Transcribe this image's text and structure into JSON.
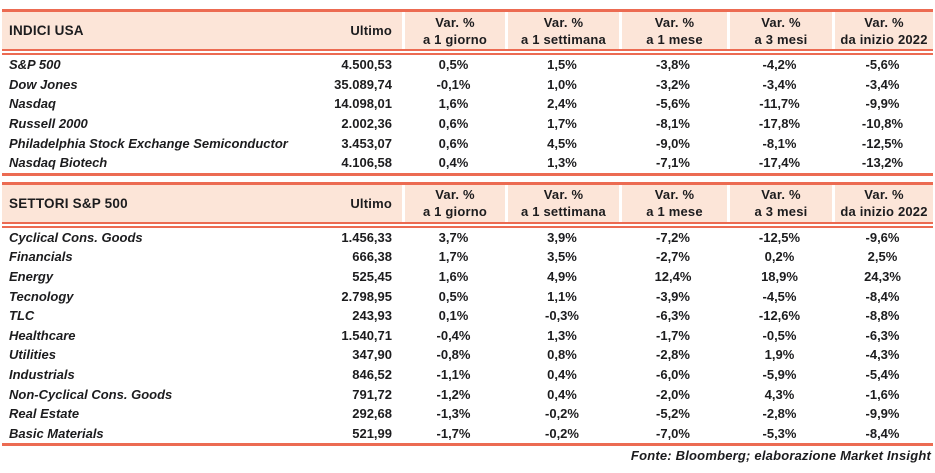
{
  "colors": {
    "accent": "#ec6b52",
    "header_bg": "#fce5d8",
    "text": "#1c1c1e"
  },
  "var_columns": [
    [
      "Var. %",
      "a 1 giorno"
    ],
    [
      "Var. %",
      "a 1 settimana"
    ],
    [
      "Var. %",
      "a 1 mese"
    ],
    [
      "Var. %",
      "a 3 mesi"
    ],
    [
      "Var. %",
      "da inizio 2022"
    ]
  ],
  "tables": [
    {
      "title": "INDICI USA",
      "ultimo_label": "Ultimo",
      "rows": [
        [
          "S&P 500",
          "4.500,53",
          "0,5%",
          "1,5%",
          "-3,8%",
          "-4,2%",
          "-5,6%"
        ],
        [
          "Dow Jones",
          "35.089,74",
          "-0,1%",
          "1,0%",
          "-3,2%",
          "-3,4%",
          "-3,4%"
        ],
        [
          "Nasdaq",
          "14.098,01",
          "1,6%",
          "2,4%",
          "-5,6%",
          "-11,7%",
          "-9,9%"
        ],
        [
          "Russell 2000",
          "2.002,36",
          "0,6%",
          "1,7%",
          "-8,1%",
          "-17,8%",
          "-10,8%"
        ],
        [
          "Philadelphia Stock Exchange Semiconductor",
          "3.453,07",
          "0,6%",
          "4,5%",
          "-9,0%",
          "-8,1%",
          "-12,5%"
        ],
        [
          "Nasdaq Biotech",
          "4.106,58",
          "0,4%",
          "1,3%",
          "-7,1%",
          "-17,4%",
          "-13,2%"
        ]
      ]
    },
    {
      "title": "SETTORI S&P 500",
      "ultimo_label": "Ultimo",
      "rows": [
        [
          "Cyclical Cons. Goods",
          "1.456,33",
          "3,7%",
          "3,9%",
          "-7,2%",
          "-12,5%",
          "-9,6%"
        ],
        [
          "Financials",
          "666,38",
          "1,7%",
          "3,5%",
          "-2,7%",
          "0,2%",
          "2,5%"
        ],
        [
          "Energy",
          "525,45",
          "1,6%",
          "4,9%",
          "12,4%",
          "18,9%",
          "24,3%"
        ],
        [
          "Tecnology",
          "2.798,95",
          "0,5%",
          "1,1%",
          "-3,9%",
          "-4,5%",
          "-8,4%"
        ],
        [
          "TLC",
          "243,93",
          "0,1%",
          "-0,3%",
          "-6,3%",
          "-12,6%",
          "-8,8%"
        ],
        [
          "Healthcare",
          "1.540,71",
          "-0,4%",
          "1,3%",
          "-1,7%",
          "-0,5%",
          "-6,3%"
        ],
        [
          "Utilities",
          "347,90",
          "-0,8%",
          "0,8%",
          "-2,8%",
          "1,9%",
          "-4,3%"
        ],
        [
          "Industrials",
          "846,52",
          "-1,1%",
          "0,4%",
          "-6,0%",
          "-5,9%",
          "-5,4%"
        ],
        [
          "Non-Cyclical Cons. Goods",
          "791,72",
          "-1,2%",
          "0,4%",
          "-2,0%",
          "4,3%",
          "-1,6%"
        ],
        [
          "Real Estate",
          "292,68",
          "-1,3%",
          "-0,2%",
          "-5,2%",
          "-2,8%",
          "-9,9%"
        ],
        [
          "Basic Materials",
          "521,99",
          "-1,7%",
          "-0,2%",
          "-7,0%",
          "-5,3%",
          "-8,4%"
        ]
      ]
    }
  ],
  "footer": {
    "source_note": "Fonte: Bloomberg; elaborazione Market Insight"
  }
}
